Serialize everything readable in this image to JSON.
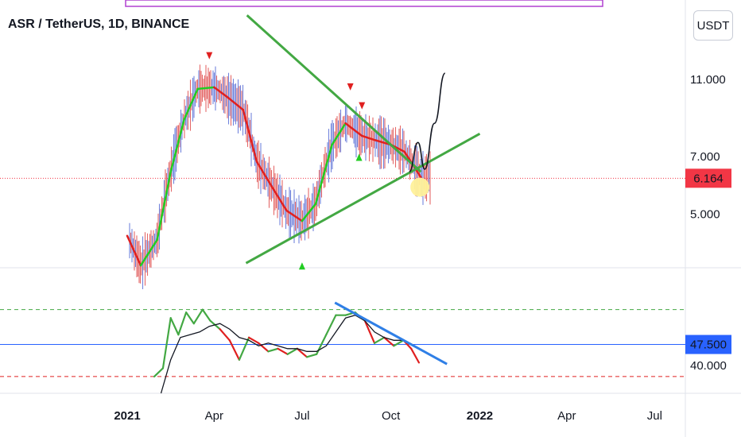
{
  "chart_title": "ASR / TetherUS, 1D, BINANCE",
  "currency_button": "USDT",
  "colors": {
    "trend_green": "#43a843",
    "ma_red": "#e02020",
    "ma_green": "#22cc22",
    "candle_red": "#e05050",
    "candle_blue": "#5a6fd8",
    "price_label_bg": "#f23645",
    "rsi_label_bg": "#2962ff",
    "blue_trendline": "#2f7fe6",
    "highlight_circle": "#fff19a",
    "top_box": "#b040d0"
  },
  "chart_data": [
    {
      "type": "line",
      "panel": "price",
      "title": "ASR / TetherUS, 1D, BINANCE",
      "y_ticks": [
        {
          "value": 11,
          "label": "11.000"
        },
        {
          "value": 7,
          "label": "7.000"
        },
        {
          "value": 5,
          "label": "5.000"
        }
      ],
      "y_scale": "log",
      "ylim": [
        3.65,
        17.5
      ],
      "last_price": {
        "value": 6.164,
        "label": "6.164"
      },
      "series": [
        {
          "role": "smoothed moving average",
          "x": [
            "2021-01-01",
            "2021-01-15",
            "2021-02-01",
            "2021-02-15",
            "2021-03-01",
            "2021-03-15",
            "2021-04-01",
            "2021-04-15",
            "2021-05-01",
            "2021-05-15",
            "2021-06-01",
            "2021-06-15",
            "2021-07-01",
            "2021-07-15",
            "2021-08-01",
            "2021-08-15",
            "2021-09-01",
            "2021-09-15",
            "2021-10-01",
            "2021-10-15",
            "2021-11-01"
          ],
          "values": [
            4.4,
            3.7,
            4.3,
            6.4,
            8.7,
            10.4,
            10.5,
            9.9,
            9.2,
            6.8,
            5.8,
            5.1,
            4.8,
            5.3,
            7.5,
            8.5,
            7.9,
            7.7,
            7.5,
            7.2,
            6.2
          ]
        }
      ],
      "annotations": {
        "descending_trendline": {
          "start": {
            "x": "2021-05-05",
            "y": 16.0
          },
          "end": {
            "x": "2021-11-01",
            "y": 6.4
          }
        },
        "ascending_trendline": {
          "start": {
            "x": "2021-05-04",
            "y": 3.75
          },
          "end": {
            "x": "2022-01-01",
            "y": 8.0
          }
        },
        "projected_path": [
          {
            "x": "2021-10-20",
            "y": 6.4
          },
          {
            "x": "2021-10-29",
            "y": 7.6
          },
          {
            "x": "2021-11-05",
            "y": 6.5
          },
          {
            "x": "2021-11-15",
            "y": 8.5
          },
          {
            "x": "2021-11-26",
            "y": 11.4
          }
        ],
        "highlight": {
          "x": "2021-10-31",
          "y": 5.85
        },
        "sell_markers": [
          {
            "x": "2021-03-27",
            "y": 12.6
          },
          {
            "x": "2021-08-20",
            "y": 10.5
          },
          {
            "x": "2021-09-01",
            "y": 9.4
          }
        ],
        "buy_markers": [
          {
            "x": "2021-08-29",
            "y": 6.95
          },
          {
            "x": "2021-07-01",
            "y": 3.68
          }
        ]
      }
    },
    {
      "type": "line",
      "panel": "oscillator",
      "ylim": [
        30,
        75
      ],
      "y_ticks": [
        {
          "value": 40,
          "label": "40.000"
        }
      ],
      "levels": [
        {
          "value": 60,
          "style": "dashed",
          "color": "#43a843"
        },
        {
          "value": 47.5,
          "style": "solid",
          "color": "#2962ff"
        },
        {
          "value": 36,
          "style": "dashed",
          "color": "#e02020"
        }
      ],
      "last_value": {
        "value": 47.5,
        "label": "47.500"
      },
      "series": [
        {
          "role": "oscillator",
          "x": [
            "2021-01-29",
            "2021-02-07",
            "2021-02-15",
            "2021-02-23",
            "2021-03-03",
            "2021-03-11",
            "2021-03-20",
            "2021-03-28",
            "2021-04-07",
            "2021-04-17",
            "2021-04-27",
            "2021-05-07",
            "2021-05-17",
            "2021-05-27",
            "2021-06-06",
            "2021-06-16",
            "2021-06-26",
            "2021-07-06",
            "2021-07-16",
            "2021-07-26",
            "2021-08-05",
            "2021-08-15",
            "2021-08-25",
            "2021-09-04",
            "2021-09-14",
            "2021-09-24",
            "2021-10-04",
            "2021-10-14",
            "2021-10-22",
            "2021-10-30"
          ],
          "values": [
            36,
            39,
            57,
            51,
            59,
            55,
            60,
            56,
            53,
            49,
            42,
            50,
            48,
            45,
            46,
            44,
            46,
            43,
            44,
            51,
            58,
            58,
            59,
            56,
            48,
            50,
            47,
            49,
            46,
            41
          ]
        },
        {
          "role": "signal",
          "x": [
            "2021-02-05",
            "2021-02-15",
            "2021-02-25",
            "2021-03-07",
            "2021-03-17",
            "2021-03-27",
            "2021-04-07",
            "2021-04-17",
            "2021-04-27",
            "2021-05-07",
            "2021-05-17",
            "2021-05-27",
            "2021-06-06",
            "2021-06-16",
            "2021-06-26",
            "2021-07-06",
            "2021-07-16",
            "2021-07-26",
            "2021-08-05",
            "2021-08-15",
            "2021-08-25",
            "2021-09-04",
            "2021-09-14",
            "2021-09-24",
            "2021-10-04",
            "2021-10-14",
            "2021-10-24"
          ],
          "values": [
            30,
            42,
            50,
            51,
            52,
            54,
            55,
            53,
            50,
            49,
            47,
            48,
            47,
            46,
            46,
            45,
            45,
            47,
            52,
            57,
            58,
            56,
            52,
            50,
            49,
            49,
            47
          ]
        }
      ],
      "annotations": {
        "descending_trendline": {
          "start": {
            "x": "2021-08-04",
            "y": 62.5
          },
          "end": {
            "x": "2021-11-28",
            "y": 40.5
          }
        }
      }
    }
  ],
  "x_axis_labels": [
    {
      "x": "2021-01-01",
      "label": "2021"
    },
    {
      "x": "2021-04-01",
      "label": "Apr"
    },
    {
      "x": "2021-07-01",
      "label": "Jul"
    },
    {
      "x": "2021-10-01",
      "label": "Oct"
    },
    {
      "x": "2022-01-01",
      "label": "2022"
    },
    {
      "x": "2022-04-01",
      "label": "Apr"
    },
    {
      "x": "2022-07-01",
      "label": "Jul"
    }
  ]
}
